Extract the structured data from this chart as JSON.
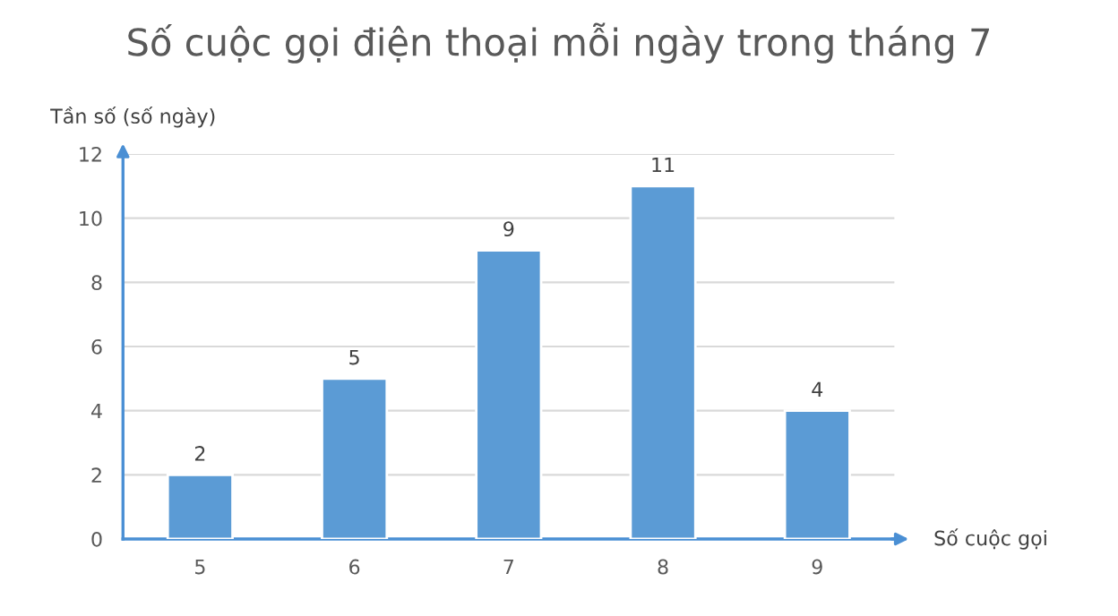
{
  "chart_data": {
    "type": "bar",
    "title": "Số cuộc gọi điện thoại mỗi ngày trong tháng 7",
    "xlabel": "Số cuộc gọi",
    "ylabel": "Tần số (số ngày)",
    "categories": [
      "5",
      "6",
      "7",
      "8",
      "9"
    ],
    "values": [
      2,
      5,
      9,
      11,
      4
    ],
    "color": "#5b9bd5",
    "ylim": [
      0,
      12
    ],
    "yticks": [
      0,
      2,
      4,
      6,
      8,
      10,
      12
    ],
    "grid": "y",
    "data_labels": true
  }
}
